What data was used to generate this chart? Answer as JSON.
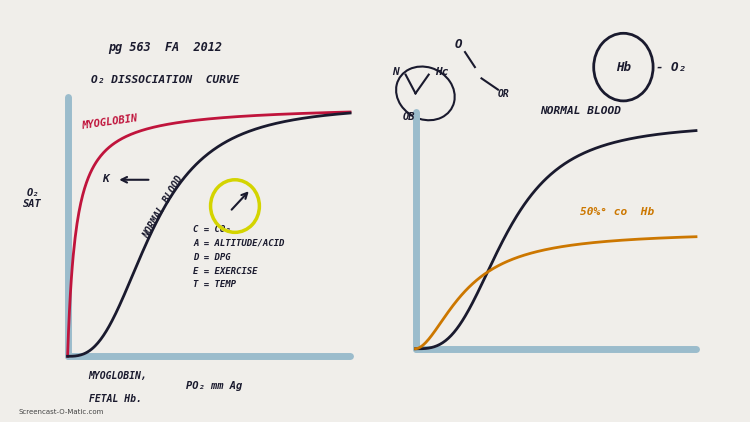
{
  "bg_left": "#f0eeea",
  "bg_right": "#f8f7f5",
  "separator_color": "#888888",
  "border_color": "#2a2a2a",
  "axis_color": "#9bbccc",
  "left": {
    "title1": "pg 563  FA  2012",
    "title2": "O₂ DISSOCIATION  CURVE",
    "ylabel": "O₂\nSAT",
    "xlabel": "PO₂ mm Ag",
    "myoglobin_label": "MYOGLOBIN",
    "normal_blood_label": "NORMAL BLOOD",
    "cadet": "C = CO₂\nA = ALTITUDE/ACID\nD = DPG\nE = EXERCISE\nT = TEMP",
    "bottom1": "MYOGLOBIN,",
    "bottom2": "FETAL Hb.",
    "myo_color": "#c0143c",
    "nb_color": "#1a1a2e"
  },
  "right": {
    "normal_label": "NORMAL BLOOD",
    "co_label": "50%° co  Hb",
    "nb_color": "#1a1a2e",
    "co_color": "#cc7700",
    "hb_label": "Hb",
    "o2_label": "- O₂"
  },
  "watermark": "Screencast-O-Matic.com"
}
